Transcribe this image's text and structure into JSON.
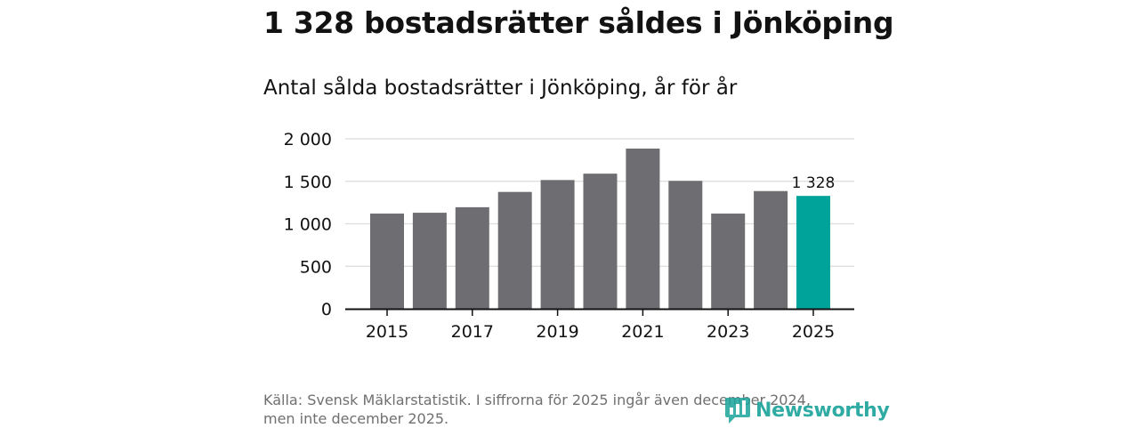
{
  "title": "1 328 bostadsrätter såldes i Jönköping",
  "subtitle": "Antal sålda bostadsrätter i Jönköping, år för år",
  "source": {
    "line1": "Källa: Svensk Mäklarstatistik. I siffrorna för 2025 ingår även december 2024,",
    "line2": "men inte december 2025."
  },
  "logo": {
    "text": "Newsworthy",
    "icon": "newsworthy-bar-chart-logo-icon"
  },
  "colors": {
    "bar": "#6e6d72",
    "highlight": "#00a39a",
    "grid": "#dcdcdc",
    "axis": "#121212",
    "brand": "#1aa39a"
  },
  "chart_data": {
    "type": "bar",
    "title": "1 328 bostadsrätter såldes i Jönköping",
    "subtitle": "Antal sålda bostadsrätter i Jönköping, år för år",
    "xlabel": "",
    "ylabel": "",
    "categories": [
      "2015",
      "2016",
      "2017",
      "2018",
      "2019",
      "2020",
      "2021",
      "2022",
      "2023",
      "2024",
      "2025"
    ],
    "values": [
      1120,
      1130,
      1195,
      1375,
      1515,
      1590,
      1885,
      1505,
      1120,
      1385,
      1328
    ],
    "highlight_index": 10,
    "ylim": [
      0,
      2000
    ],
    "yticks": [
      0,
      500,
      1000,
      1500,
      2000
    ],
    "ytick_labels": [
      "0",
      "500",
      "1 000",
      "1 500",
      "2 000"
    ],
    "xtick_labels": [
      "2015",
      "2017",
      "2019",
      "2021",
      "2023",
      "2025"
    ],
    "grid": true,
    "annotations": [
      {
        "category": "2025",
        "text": "1 328"
      }
    ]
  }
}
